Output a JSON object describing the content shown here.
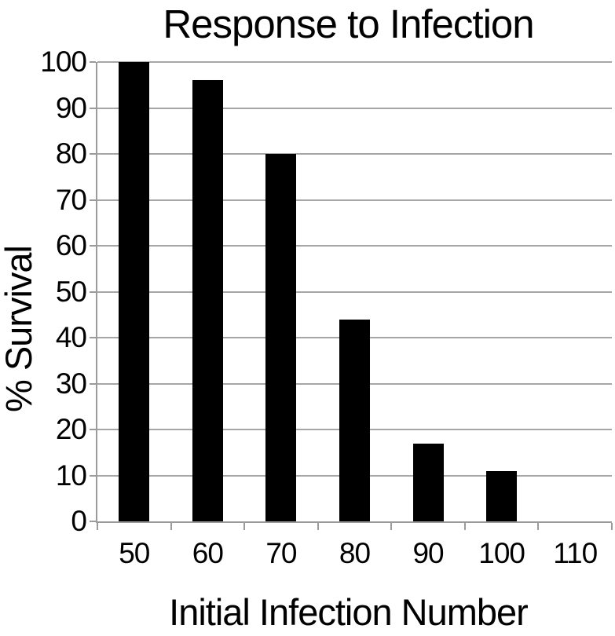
{
  "chart_data": {
    "type": "bar",
    "title": "Response to Infection",
    "xlabel": "Initial Infection Number",
    "ylabel": "% Survival",
    "categories": [
      "50",
      "60",
      "70",
      "80",
      "90",
      "100",
      "110"
    ],
    "values": [
      100,
      96,
      80,
      44,
      17,
      11,
      0
    ],
    "yticks": [
      0,
      10,
      20,
      30,
      40,
      50,
      60,
      70,
      80,
      90,
      100
    ],
    "ylim": [
      0,
      100
    ],
    "grid": "horizontal",
    "legend": "none",
    "bar_color": "#000000",
    "grid_color": "#a6a6a6",
    "axis_color": "#9b9b9b",
    "text_color": "#000000"
  }
}
